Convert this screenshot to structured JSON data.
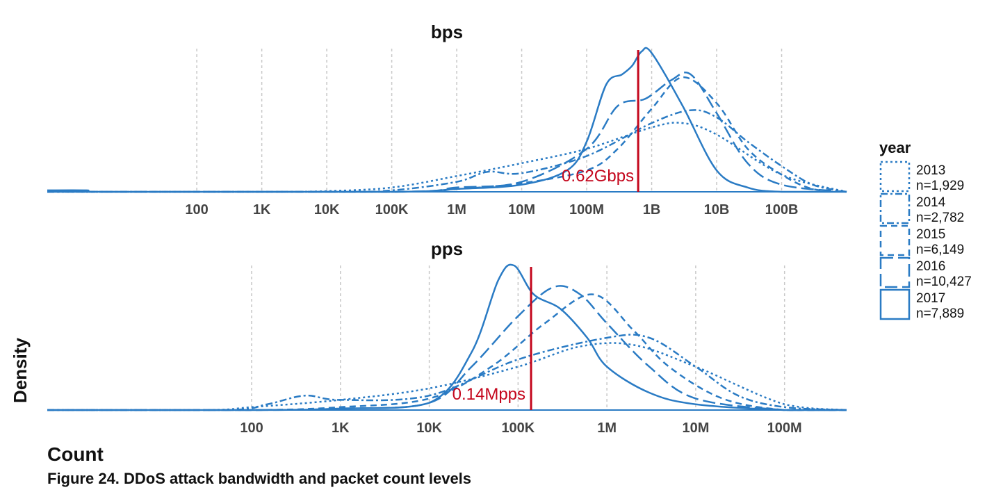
{
  "chart_data": [
    {
      "type": "line",
      "title": "bps",
      "x_scale": "log",
      "xlim": [
        0.5,
        1000000000000
      ],
      "x_ticks": [
        {
          "v": 100,
          "label": "100"
        },
        {
          "v": 1000,
          "label": "1K"
        },
        {
          "v": 10000,
          "label": "10K"
        },
        {
          "v": 100000,
          "label": "100K"
        },
        {
          "v": 1000000,
          "label": "1M"
        },
        {
          "v": 10000000,
          "label": "10M"
        },
        {
          "v": 100000000,
          "label": "100M"
        },
        {
          "v": 1000000000,
          "label": "1B"
        },
        {
          "v": 10000000000,
          "label": "10B"
        },
        {
          "v": 100000000000,
          "label": "100B"
        }
      ],
      "median": {
        "value": 620000000,
        "label": "0.62Gbps"
      },
      "ylim": [
        0,
        1.0
      ],
      "grid": "vertical dashed at x ticks",
      "series": [
        {
          "name": "2013",
          "points": [
            [
              0.5,
              0.0
            ],
            [
              1000,
              0.0
            ],
            [
              10000,
              0.005
            ],
            [
              100000,
              0.03
            ],
            [
              1000000,
              0.11
            ],
            [
              10000000,
              0.2
            ],
            [
              100000000,
              0.3
            ],
            [
              1000000000,
              0.45
            ],
            [
              3000000000,
              0.48
            ],
            [
              10000000000,
              0.4
            ],
            [
              100000000000,
              0.12
            ],
            [
              1000000000000,
              0.0
            ]
          ]
        },
        {
          "name": "2014",
          "points": [
            [
              0.5,
              0.0
            ],
            [
              10000,
              0.0
            ],
            [
              100000,
              0.01
            ],
            [
              1000000,
              0.07
            ],
            [
              3000000,
              0.14
            ],
            [
              10000000,
              0.13
            ],
            [
              100000000,
              0.25
            ],
            [
              1000000000,
              0.48
            ],
            [
              4000000000,
              0.57
            ],
            [
              10000000000,
              0.52
            ],
            [
              30000000000,
              0.35
            ],
            [
              100000000000,
              0.18
            ],
            [
              300000000000,
              0.05
            ],
            [
              1000000000000,
              0.0
            ]
          ]
        },
        {
          "name": "2015",
          "points": [
            [
              0.5,
              0.0
            ],
            [
              100000,
              0.0
            ],
            [
              1000000,
              0.02
            ],
            [
              10000000,
              0.06
            ],
            [
              100000000,
              0.15
            ],
            [
              300000000,
              0.3
            ],
            [
              1000000000,
              0.58
            ],
            [
              3000000000,
              0.8
            ],
            [
              10000000000,
              0.62
            ],
            [
              30000000000,
              0.3
            ],
            [
              100000000000,
              0.12
            ],
            [
              300000000000,
              0.02
            ],
            [
              1000000000000,
              0.0
            ]
          ]
        },
        {
          "name": "2016",
          "points": [
            [
              0.5,
              0.0
            ],
            [
              100000,
              0.0
            ],
            [
              1000000,
              0.03
            ],
            [
              10000000,
              0.07
            ],
            [
              100000000,
              0.3
            ],
            [
              300000000,
              0.6
            ],
            [
              800000000,
              0.65
            ],
            [
              2000000000,
              0.78
            ],
            [
              4000000000,
              0.82
            ],
            [
              10000000000,
              0.55
            ],
            [
              30000000000,
              0.2
            ],
            [
              100000000000,
              0.05
            ],
            [
              1000000000000,
              0.0
            ]
          ]
        },
        {
          "name": "2017",
          "points": [
            [
              0.5,
              0.01
            ],
            [
              2,
              0.01
            ],
            [
              5,
              0.0
            ],
            [
              100000,
              0.0
            ],
            [
              1000000,
              0.02
            ],
            [
              10000000,
              0.05
            ],
            [
              50000000,
              0.15
            ],
            [
              100000000,
              0.35
            ],
            [
              200000000,
              0.75
            ],
            [
              350000000,
              0.82
            ],
            [
              500000000,
              0.88
            ],
            [
              700000000,
              0.98
            ],
            [
              1000000000,
              0.97
            ],
            [
              3000000000,
              0.6
            ],
            [
              10000000000,
              0.15
            ],
            [
              30000000000,
              0.03
            ],
            [
              100000000000,
              0.0
            ],
            [
              1000000000000,
              0.0
            ]
          ]
        }
      ]
    },
    {
      "type": "line",
      "title": "pps",
      "x_scale": "log",
      "xlim": [
        0.5,
        500000000
      ],
      "x_ticks": [
        {
          "v": 100,
          "label": "100"
        },
        {
          "v": 1000,
          "label": "1K"
        },
        {
          "v": 10000,
          "label": "10K"
        },
        {
          "v": 100000,
          "label": "100K"
        },
        {
          "v": 1000000,
          "label": "1M"
        },
        {
          "v": 10000000,
          "label": "10M"
        },
        {
          "v": 100000000,
          "label": "100M"
        }
      ],
      "median": {
        "value": 140000,
        "label": "0.14Mpps"
      },
      "ylim": [
        0,
        1.0
      ],
      "grid": "vertical dashed at x ticks",
      "series": [
        {
          "name": "2013",
          "points": [
            [
              0.5,
              0.0
            ],
            [
              30,
              0.0
            ],
            [
              100,
              0.02
            ],
            [
              1000,
              0.07
            ],
            [
              10000,
              0.15
            ],
            [
              100000,
              0.3
            ],
            [
              500000,
              0.44
            ],
            [
              2000000,
              0.45
            ],
            [
              10000000,
              0.3
            ],
            [
              100000000,
              0.04
            ],
            [
              500000000,
              0.0
            ]
          ]
        },
        {
          "name": "2014",
          "points": [
            [
              0.5,
              0.0
            ],
            [
              50,
              0.0
            ],
            [
              150,
              0.04
            ],
            [
              400,
              0.1
            ],
            [
              1000,
              0.07
            ],
            [
              10000,
              0.1
            ],
            [
              100000,
              0.35
            ],
            [
              1000000,
              0.5
            ],
            [
              3000000,
              0.5
            ],
            [
              10000000,
              0.3
            ],
            [
              30000000,
              0.1
            ],
            [
              100000000,
              0.02
            ],
            [
              500000000,
              0.0
            ]
          ]
        },
        {
          "name": "2015",
          "points": [
            [
              0.5,
              0.0
            ],
            [
              100,
              0.0
            ],
            [
              1000,
              0.02
            ],
            [
              10000,
              0.08
            ],
            [
              50000,
              0.3
            ],
            [
              200000,
              0.6
            ],
            [
              700000,
              0.8
            ],
            [
              2000000,
              0.55
            ],
            [
              5000000,
              0.3
            ],
            [
              20000000,
              0.08
            ],
            [
              100000000,
              0.0
            ],
            [
              500000000,
              0.0
            ]
          ]
        },
        {
          "name": "2016",
          "points": [
            [
              0.5,
              0.0
            ],
            [
              100,
              0.0
            ],
            [
              1000,
              0.01
            ],
            [
              10000,
              0.05
            ],
            [
              30000,
              0.3
            ],
            [
              100000,
              0.65
            ],
            [
              250000,
              0.85
            ],
            [
              500000,
              0.8
            ],
            [
              1000000,
              0.6
            ],
            [
              3000000,
              0.3
            ],
            [
              10000000,
              0.08
            ],
            [
              100000000,
              0.0
            ],
            [
              500000000,
              0.0
            ]
          ]
        },
        {
          "name": "2017",
          "points": [
            [
              0.5,
              0.0
            ],
            [
              100,
              0.0
            ],
            [
              1000,
              0.01
            ],
            [
              10000,
              0.05
            ],
            [
              30000,
              0.4
            ],
            [
              60000,
              0.9
            ],
            [
              90000,
              1.0
            ],
            [
              150000,
              0.8
            ],
            [
              300000,
              0.7
            ],
            [
              600000,
              0.5
            ],
            [
              1000000,
              0.3
            ],
            [
              3000000,
              0.12
            ],
            [
              10000000,
              0.04
            ],
            [
              100000000,
              0.0
            ],
            [
              500000000,
              0.0
            ]
          ]
        }
      ]
    }
  ],
  "y_axis_label": "Density",
  "x_axis_label": "Count",
  "caption": "Figure 24.  DDoS attack bandwidth and packet count levels",
  "legend": {
    "title": "year",
    "placement": "right",
    "entries": [
      {
        "year": "2013",
        "n": "n=1,929",
        "dash": "3 4"
      },
      {
        "year": "2014",
        "n": "n=2,782",
        "dash": "10 4 3 4"
      },
      {
        "year": "2015",
        "n": "n=6,149",
        "dash": "9 6"
      },
      {
        "year": "2016",
        "n": "n=10,427",
        "dash": "18 7"
      },
      {
        "year": "2017",
        "n": "n=7,889",
        "dash": ""
      }
    ]
  },
  "colors": {
    "series": "#2a7bc4",
    "median": "#c4061c",
    "grid": "#c8c8c8"
  }
}
